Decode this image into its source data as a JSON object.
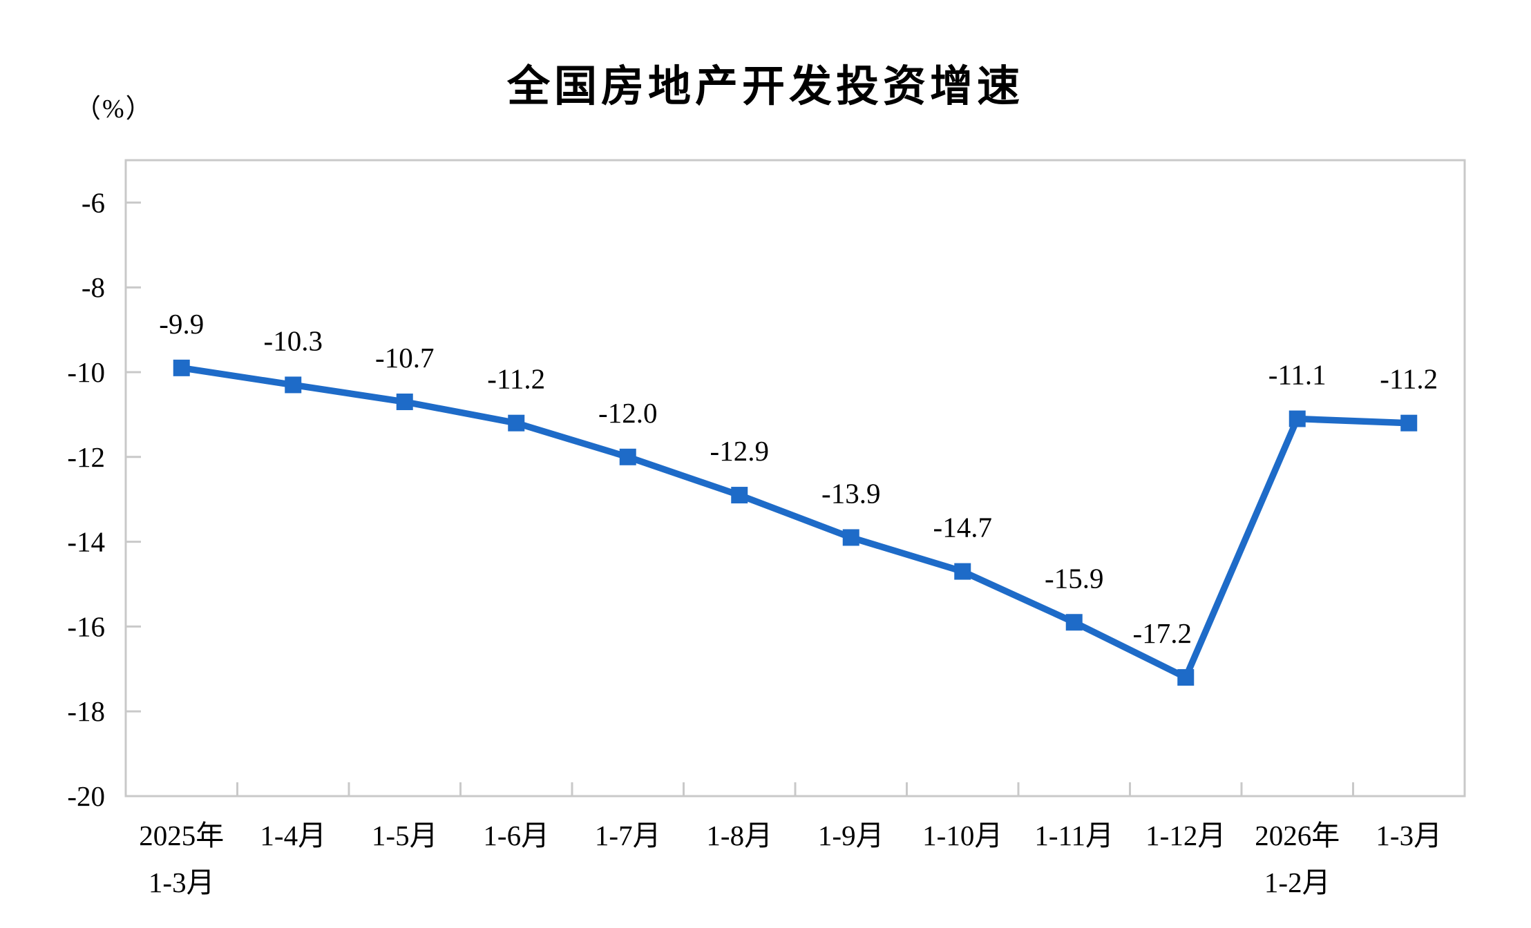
{
  "page": {
    "title": "全国房地产开发投资增速",
    "y_axis_unit": "（%）"
  },
  "chart_data": {
    "type": "line",
    "title": "全国房地产开发投资增速",
    "ylabel": "（%）",
    "categories": [
      "2025年\n1-3月",
      "1-4月",
      "1-5月",
      "1-6月",
      "1-7月",
      "1-8月",
      "1-9月",
      "1-10月",
      "1-11月",
      "1-12月",
      "2026年\n1-2月",
      "1-3月"
    ],
    "values": [
      -9.9,
      -10.3,
      -10.7,
      -11.2,
      -12.0,
      -12.9,
      -13.9,
      -14.7,
      -15.9,
      -17.2,
      -11.1,
      -11.2
    ],
    "point_labels": [
      "-9.9",
      "-10.3",
      "-10.7",
      "-11.2",
      "-12.0",
      "-12.9",
      "-13.9",
      "-14.7",
      "-15.9",
      "-17.2",
      "-11.1",
      "-11.2"
    ],
    "ytick_labels": [
      "-6",
      "-8",
      "-10",
      "-12",
      "-14",
      "-16",
      "-18",
      "-20"
    ],
    "yticks": [
      -6,
      -8,
      -10,
      -12,
      -14,
      -16,
      -18,
      -20
    ],
    "ylim": [
      -20,
      -5
    ],
    "grid": false,
    "legend_position": "none",
    "line_color": "#1E6BC8",
    "marker": "square",
    "axis_color": "#C9C9C9",
    "text_color": "#000000"
  }
}
